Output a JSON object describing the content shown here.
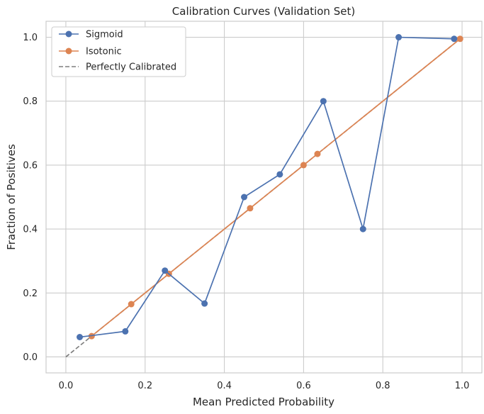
{
  "chart_data": {
    "type": "line",
    "title": "Calibration Curves (Validation Set)",
    "xlabel": "Mean Predicted Probability",
    "ylabel": "Fraction of Positives",
    "xlim": [
      -0.05,
      1.05
    ],
    "ylim": [
      -0.05,
      1.05
    ],
    "x_ticks": [
      "0.0",
      "0.2",
      "0.4",
      "0.6",
      "0.8",
      "1.0"
    ],
    "y_ticks": [
      "0.0",
      "0.2",
      "0.4",
      "0.6",
      "0.8",
      "1.0"
    ],
    "grid": true,
    "legend_position": "top-left",
    "series": [
      {
        "name": "Sigmoid",
        "color": "#4c72b0",
        "marker": "circle",
        "x": [
          0.035,
          0.15,
          0.25,
          0.35,
          0.45,
          0.54,
          0.65,
          0.75,
          0.84,
          0.98
        ],
        "y": [
          0.062,
          0.08,
          0.27,
          0.167,
          0.5,
          0.571,
          0.8,
          0.4,
          1.0,
          0.995
        ]
      },
      {
        "name": "Isotonic",
        "color": "#dd8452",
        "marker": "circle",
        "x": [
          0.065,
          0.165,
          0.26,
          0.465,
          0.6,
          0.635,
          0.995
        ],
        "y": [
          0.065,
          0.165,
          0.26,
          0.465,
          0.6,
          0.635,
          0.995
        ]
      },
      {
        "name": "Perfectly Calibrated",
        "color": "#7f7f7f",
        "dashed": true,
        "x": [
          0,
          1
        ],
        "y": [
          0,
          1
        ]
      }
    ]
  }
}
